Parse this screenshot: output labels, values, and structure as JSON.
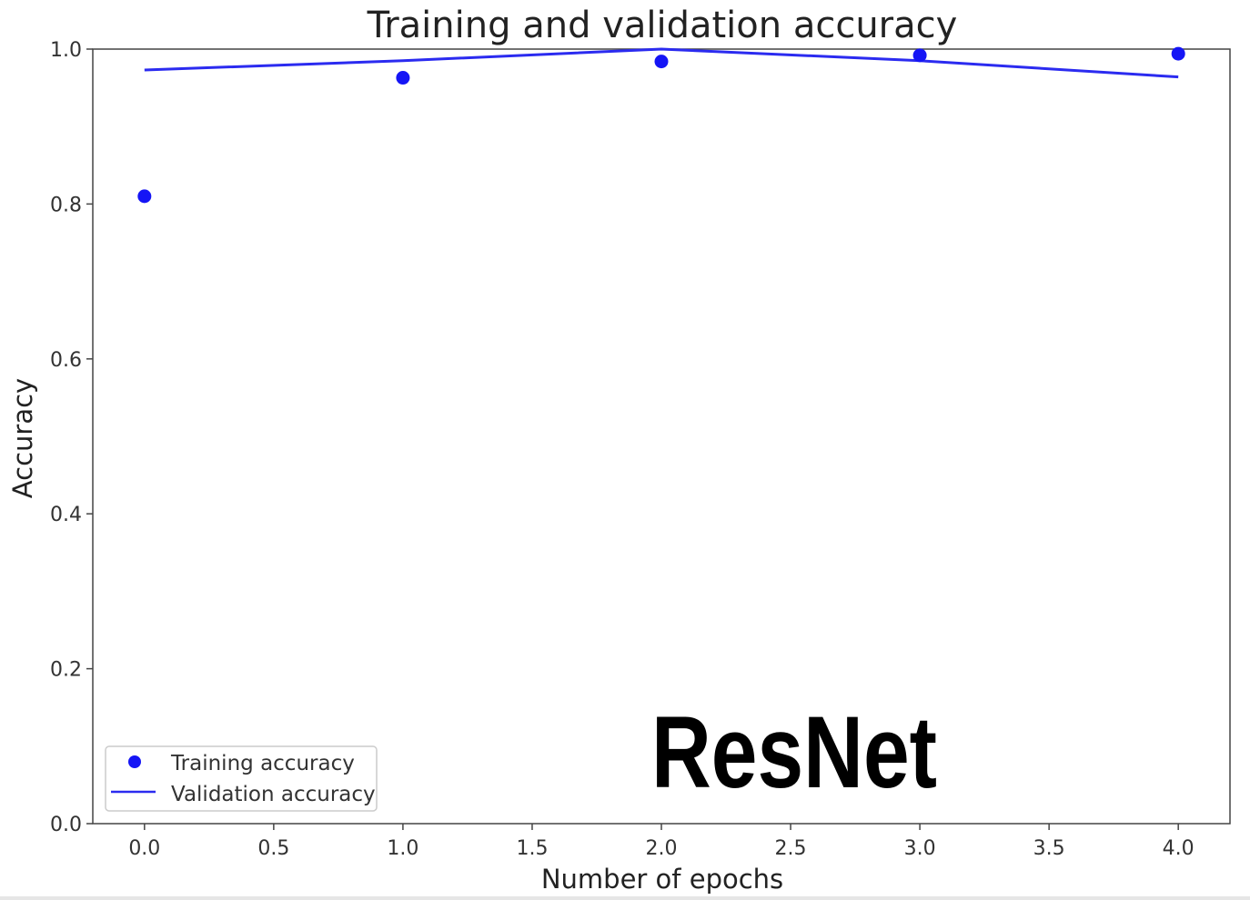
{
  "chart_data": {
    "type": "line",
    "title": "Training and validation accuracy",
    "xlabel": "Number of epochs",
    "ylabel": "Accuracy",
    "xlim": [
      -0.2,
      4.2
    ],
    "ylim": [
      0.0,
      1.0
    ],
    "x_ticks": [
      0.0,
      0.5,
      1.0,
      1.5,
      2.0,
      2.5,
      3.0,
      3.5,
      4.0
    ],
    "x_tick_labels": [
      "0.0",
      "0.5",
      "1.0",
      "1.5",
      "2.0",
      "2.5",
      "3.0",
      "3.5",
      "4.0"
    ],
    "y_ticks": [
      0.0,
      0.2,
      0.4,
      0.6,
      0.8,
      1.0
    ],
    "y_tick_labels": [
      "0.0",
      "0.2",
      "0.4",
      "0.6",
      "0.8",
      "1.0"
    ],
    "grid": false,
    "legend_position": "lower-left",
    "series": [
      {
        "name": "Training accuracy",
        "style": "markers",
        "color": "#1515f5",
        "x": [
          0,
          1,
          2,
          3,
          4
        ],
        "y": [
          0.81,
          0.963,
          0.984,
          0.992,
          0.994
        ]
      },
      {
        "name": "Validation accuracy",
        "style": "line",
        "color": "#2b2bf0",
        "x": [
          0,
          1,
          2,
          3,
          4
        ],
        "y": [
          0.973,
          0.985,
          1.0,
          0.985,
          0.964
        ]
      }
    ]
  },
  "overlay_label": "ResNet"
}
